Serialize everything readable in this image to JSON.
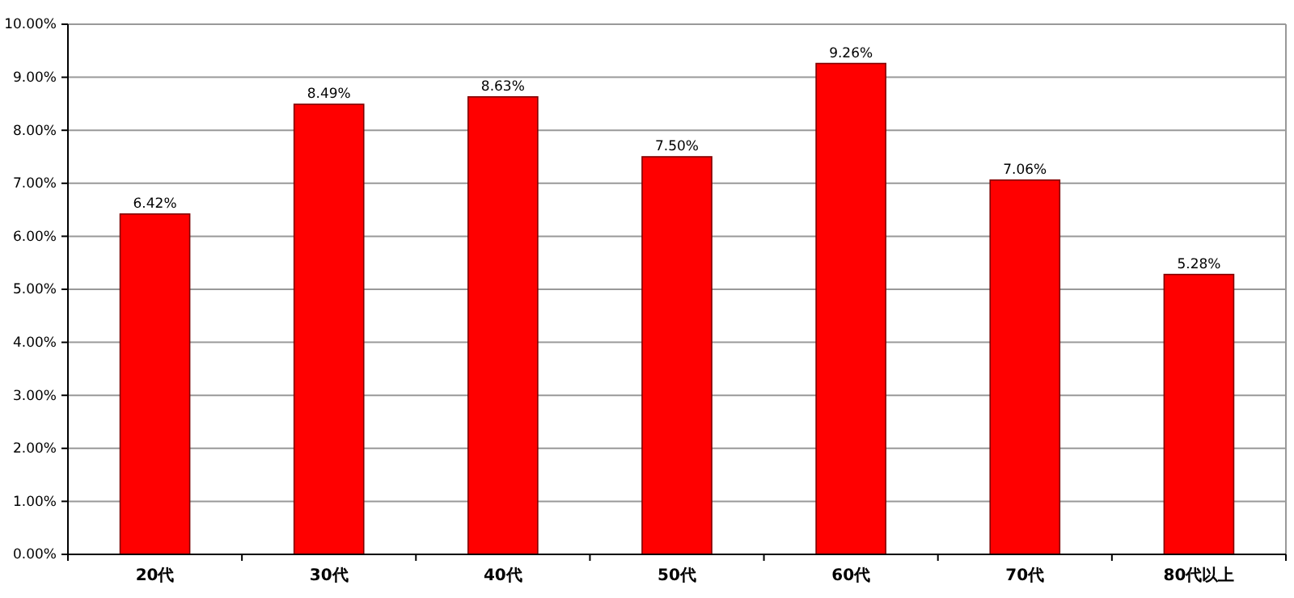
{
  "chart_data": {
    "type": "bar",
    "categories": [
      "20代",
      "30代",
      "40代",
      "50代",
      "60代",
      "70代",
      "80代以上"
    ],
    "values": [
      6.42,
      8.49,
      8.63,
      7.5,
      9.26,
      7.06,
      5.28
    ],
    "value_labels": [
      "6.42%",
      "8.49%",
      "8.63%",
      "7.50%",
      "9.26%",
      "7.06%",
      "5.28%"
    ],
    "color": "#ff0000",
    "ylim": [
      0,
      10
    ],
    "yticks": [
      {
        "value": 0,
        "label": "0.00%"
      },
      {
        "value": 1,
        "label": "1.00%"
      },
      {
        "value": 2,
        "label": "2.00%"
      },
      {
        "value": 3,
        "label": "3.00%"
      },
      {
        "value": 4,
        "label": "4.00%"
      },
      {
        "value": 5,
        "label": "5.00%"
      },
      {
        "value": 6,
        "label": "6.00%"
      },
      {
        "value": 7,
        "label": "7.00%"
      },
      {
        "value": 8,
        "label": "8.00%"
      },
      {
        "value": 9,
        "label": "9.00%"
      },
      {
        "value": 10,
        "label": "10.00%"
      }
    ],
    "grid": "y"
  }
}
